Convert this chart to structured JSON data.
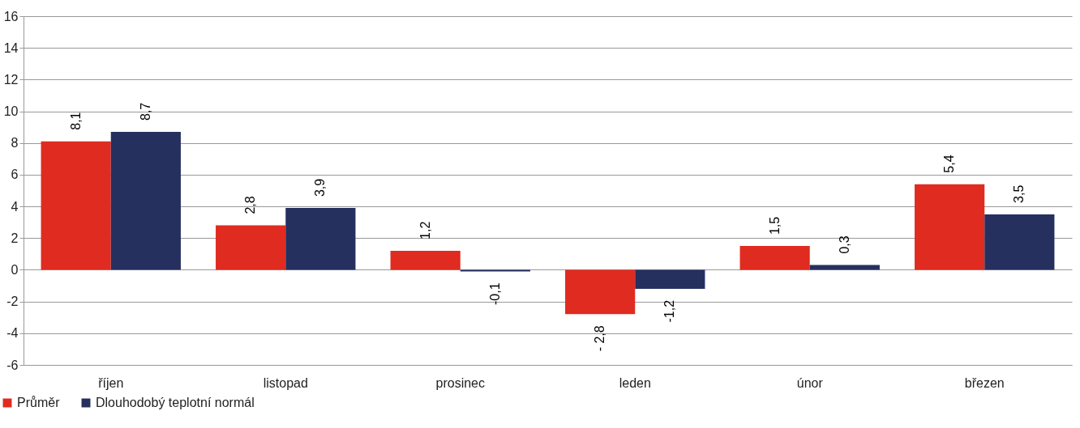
{
  "chart_data": {
    "type": "bar",
    "categories": [
      "říjen",
      "listopad",
      "prosinec",
      "leden",
      "únor",
      "březen"
    ],
    "series": [
      {
        "name": "Průměr",
        "color": "#e02b20",
        "values": [
          8.1,
          2.8,
          1.2,
          -2.8,
          1.5,
          5.4
        ],
        "value_labels": [
          "8,1",
          "2,8",
          "1,2",
          "- 2,8",
          "1,5",
          "5,4"
        ]
      },
      {
        "name": "Dlouhodobý teplotní normál",
        "color": "#25305f",
        "values": [
          8.7,
          3.9,
          -0.1,
          -1.2,
          0.3,
          3.5
        ],
        "value_labels": [
          "8,7",
          "3,9",
          "-0,1",
          "-1,2",
          "0,3",
          "3,5"
        ]
      }
    ],
    "ylim": [
      -6,
      16
    ],
    "yticks": [
      -6,
      -4,
      -2,
      0,
      2,
      4,
      6,
      8,
      10,
      12,
      14,
      16
    ],
    "grid": "y",
    "legend": "bottom left"
  }
}
